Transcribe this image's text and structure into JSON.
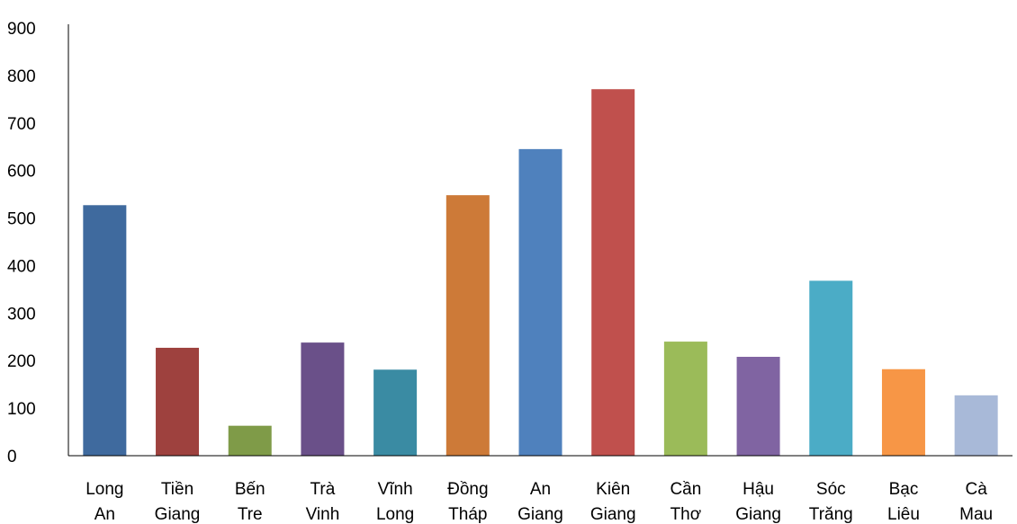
{
  "chart_data": {
    "type": "bar",
    "title": "",
    "xlabel": "",
    "ylabel": "",
    "ylim": [
      0,
      900
    ],
    "yticks": [
      0,
      100,
      200,
      300,
      400,
      500,
      600,
      700,
      800,
      900
    ],
    "ytick_labels": [
      "0",
      "100",
      "200",
      "300",
      "400",
      "500",
      "600",
      "700",
      "800",
      "900"
    ],
    "grid": false,
    "legend": "none",
    "categories": [
      [
        "Long",
        "An"
      ],
      [
        "Tiền",
        "Giang"
      ],
      [
        "Bến",
        "Tre"
      ],
      [
        "Trà",
        "Vinh"
      ],
      [
        "Vĩnh",
        "Long"
      ],
      [
        "Đồng",
        "Tháp"
      ],
      [
        "An",
        "Giang"
      ],
      [
        "Kiên",
        "Giang"
      ],
      [
        "Cần",
        "Thơ"
      ],
      [
        "Hậu",
        "Giang"
      ],
      [
        "Sóc",
        "Trăng"
      ],
      [
        "Bạc",
        "Liêu"
      ],
      [
        "Cà",
        "Mau"
      ]
    ],
    "values": [
      527,
      227,
      63,
      238,
      181,
      548,
      645,
      771,
      240,
      208,
      368,
      182,
      127
    ],
    "colors": [
      "#3f6a9e",
      "#9e413e",
      "#7f9b48",
      "#6a5089",
      "#3a8ba3",
      "#cd7a38",
      "#4f81bd",
      "#c0504d",
      "#9bbb59",
      "#8064a2",
      "#4bacc6",
      "#f79646",
      "#a8b9d8"
    ]
  }
}
